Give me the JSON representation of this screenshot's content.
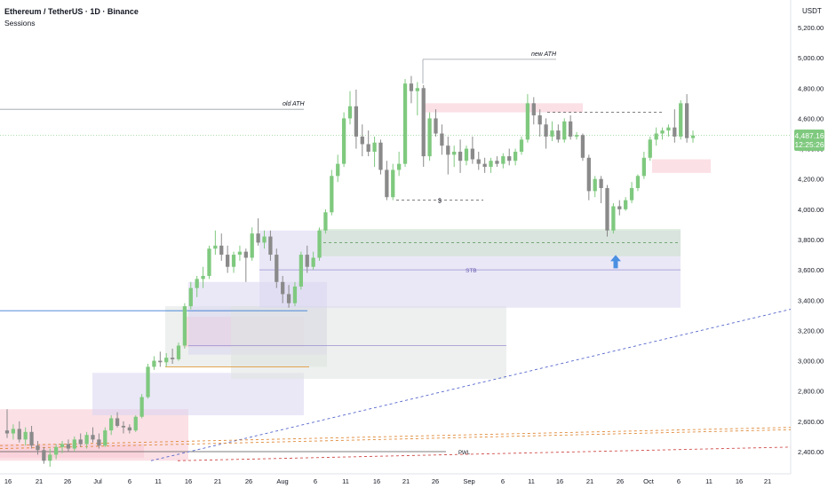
{
  "header": {
    "title": "Ethereum / TetherUS · 1D · Binance",
    "subtitle": "Sessions"
  },
  "price_axis": {
    "currency": "USDT",
    "ticks": [
      "5,200.00",
      "5,000.00",
      "4,800.00",
      "4,600.00",
      "4,400.00",
      "4,200.00",
      "4,000.00",
      "3,800.00",
      "3,600.00",
      "3,400.00",
      "3,200.00",
      "3,000.00",
      "2,800.00",
      "2,600.00",
      "2,400.00"
    ],
    "last_price": "4,487.16",
    "countdown": "12:25:26"
  },
  "annotations": {
    "old_ath": "old ATH",
    "new_ath": "new ATH",
    "dollar": "$",
    "stb": "STB",
    "pwl": "PWL"
  },
  "colors": {
    "up": "#7fc97f",
    "down": "#8a8a8a",
    "zone_pink": "#f7c6d2",
    "zone_purple": "#d9d6f0",
    "zone_green": "#c8e0c8",
    "zone_gray": "#dfe3e0",
    "arrow": "#4a90e2"
  },
  "chart_data": {
    "type": "candlestick",
    "symbol": "ETH/USDT",
    "interval": "1D",
    "ylim": [
      2340,
      5300
    ],
    "x_ticks": [
      "16",
      "21",
      "26",
      "Jul",
      "6",
      "11",
      "16",
      "21",
      "26",
      "Aug",
      "6",
      "11",
      "16",
      "21",
      "26",
      "Sep",
      "6",
      "11",
      "16",
      "21",
      "26",
      "Oct",
      "6",
      "11",
      "16",
      "21"
    ],
    "candles": [
      {
        "o": 2540,
        "h": 2680,
        "l": 2490,
        "c": 2520
      },
      {
        "o": 2520,
        "h": 2580,
        "l": 2480,
        "c": 2550
      },
      {
        "o": 2550,
        "h": 2600,
        "l": 2460,
        "c": 2480
      },
      {
        "o": 2480,
        "h": 2560,
        "l": 2440,
        "c": 2530
      },
      {
        "o": 2530,
        "h": 2570,
        "l": 2420,
        "c": 2440
      },
      {
        "o": 2440,
        "h": 2470,
        "l": 2380,
        "c": 2410
      },
      {
        "o": 2410,
        "h": 2430,
        "l": 2320,
        "c": 2340
      },
      {
        "o": 2340,
        "h": 2420,
        "l": 2300,
        "c": 2380
      },
      {
        "o": 2380,
        "h": 2450,
        "l": 2350,
        "c": 2430
      },
      {
        "o": 2430,
        "h": 2470,
        "l": 2390,
        "c": 2450
      },
      {
        "o": 2450,
        "h": 2480,
        "l": 2400,
        "c": 2420
      },
      {
        "o": 2420,
        "h": 2500,
        "l": 2400,
        "c": 2480
      },
      {
        "o": 2480,
        "h": 2520,
        "l": 2430,
        "c": 2450
      },
      {
        "o": 2450,
        "h": 2530,
        "l": 2420,
        "c": 2510
      },
      {
        "o": 2510,
        "h": 2560,
        "l": 2460,
        "c": 2480
      },
      {
        "o": 2480,
        "h": 2520,
        "l": 2420,
        "c": 2440
      },
      {
        "o": 2440,
        "h": 2560,
        "l": 2430,
        "c": 2540
      },
      {
        "o": 2540,
        "h": 2640,
        "l": 2510,
        "c": 2620
      },
      {
        "o": 2620,
        "h": 2660,
        "l": 2560,
        "c": 2570
      },
      {
        "o": 2570,
        "h": 2600,
        "l": 2520,
        "c": 2560
      },
      {
        "o": 2560,
        "h": 2580,
        "l": 2520,
        "c": 2540
      },
      {
        "o": 2540,
        "h": 2640,
        "l": 2530,
        "c": 2630
      },
      {
        "o": 2630,
        "h": 2780,
        "l": 2620,
        "c": 2760
      },
      {
        "o": 2760,
        "h": 2980,
        "l": 2750,
        "c": 2960
      },
      {
        "o": 2960,
        "h": 3030,
        "l": 2940,
        "c": 3000
      },
      {
        "o": 3000,
        "h": 3060,
        "l": 2960,
        "c": 2990
      },
      {
        "o": 2990,
        "h": 3050,
        "l": 2960,
        "c": 3020
      },
      {
        "o": 3020,
        "h": 3080,
        "l": 2980,
        "c": 3010
      },
      {
        "o": 3010,
        "h": 3120,
        "l": 3000,
        "c": 3100
      },
      {
        "o": 3100,
        "h": 3380,
        "l": 3080,
        "c": 3360
      },
      {
        "o": 3360,
        "h": 3520,
        "l": 3340,
        "c": 3480
      },
      {
        "o": 3480,
        "h": 3560,
        "l": 3420,
        "c": 3540
      },
      {
        "o": 3540,
        "h": 3620,
        "l": 3480,
        "c": 3560
      },
      {
        "o": 3560,
        "h": 3760,
        "l": 3540,
        "c": 3740
      },
      {
        "o": 3740,
        "h": 3860,
        "l": 3700,
        "c": 3760
      },
      {
        "o": 3760,
        "h": 3840,
        "l": 3660,
        "c": 3700
      },
      {
        "o": 3700,
        "h": 3760,
        "l": 3580,
        "c": 3620
      },
      {
        "o": 3620,
        "h": 3720,
        "l": 3580,
        "c": 3700
      },
      {
        "o": 3700,
        "h": 3760,
        "l": 3660,
        "c": 3720
      },
      {
        "o": 3720,
        "h": 3740,
        "l": 3520,
        "c": 3680
      },
      {
        "o": 3680,
        "h": 3880,
        "l": 3660,
        "c": 3840
      },
      {
        "o": 3840,
        "h": 3940,
        "l": 3760,
        "c": 3780
      },
      {
        "o": 3780,
        "h": 3860,
        "l": 3740,
        "c": 3820
      },
      {
        "o": 3820,
        "h": 3860,
        "l": 3660,
        "c": 3700
      },
      {
        "o": 3700,
        "h": 3740,
        "l": 3480,
        "c": 3520
      },
      {
        "o": 3520,
        "h": 3560,
        "l": 3380,
        "c": 3440
      },
      {
        "o": 3440,
        "h": 3500,
        "l": 3350,
        "c": 3380
      },
      {
        "o": 3380,
        "h": 3520,
        "l": 3360,
        "c": 3490
      },
      {
        "o": 3490,
        "h": 3720,
        "l": 3470,
        "c": 3700
      },
      {
        "o": 3700,
        "h": 3760,
        "l": 3580,
        "c": 3620
      },
      {
        "o": 3620,
        "h": 3720,
        "l": 3600,
        "c": 3680
      },
      {
        "o": 3680,
        "h": 3880,
        "l": 3660,
        "c": 3860
      },
      {
        "o": 3860,
        "h": 4000,
        "l": 3840,
        "c": 3980
      },
      {
        "o": 3980,
        "h": 4260,
        "l": 3960,
        "c": 4220
      },
      {
        "o": 4220,
        "h": 4360,
        "l": 4180,
        "c": 4300
      },
      {
        "o": 4300,
        "h": 4640,
        "l": 4280,
        "c": 4600
      },
      {
        "o": 4600,
        "h": 4780,
        "l": 4560,
        "c": 4680
      },
      {
        "o": 4680,
        "h": 4790,
        "l": 4400,
        "c": 4480
      },
      {
        "o": 4480,
        "h": 4560,
        "l": 4350,
        "c": 4430
      },
      {
        "o": 4430,
        "h": 4520,
        "l": 4350,
        "c": 4380
      },
      {
        "o": 4380,
        "h": 4480,
        "l": 4280,
        "c": 4440
      },
      {
        "o": 4440,
        "h": 4460,
        "l": 4230,
        "c": 4260
      },
      {
        "o": 4260,
        "h": 4320,
        "l": 4060,
        "c": 4080
      },
      {
        "o": 4080,
        "h": 4300,
        "l": 4060,
        "c": 4260
      },
      {
        "o": 4260,
        "h": 4380,
        "l": 4220,
        "c": 4300
      },
      {
        "o": 4300,
        "h": 4860,
        "l": 4280,
        "c": 4830
      },
      {
        "o": 4830,
        "h": 4880,
        "l": 4700,
        "c": 4780
      },
      {
        "o": 4780,
        "h": 4840,
        "l": 4620,
        "c": 4800
      },
      {
        "o": 4800,
        "h": 4820,
        "l": 4280,
        "c": 4350
      },
      {
        "o": 4350,
        "h": 4640,
        "l": 4320,
        "c": 4600
      },
      {
        "o": 4600,
        "h": 4660,
        "l": 4480,
        "c": 4500
      },
      {
        "o": 4500,
        "h": 4560,
        "l": 4360,
        "c": 4420
      },
      {
        "o": 4420,
        "h": 4480,
        "l": 4230,
        "c": 4360
      },
      {
        "o": 4360,
        "h": 4420,
        "l": 4280,
        "c": 4380
      },
      {
        "o": 4380,
        "h": 4460,
        "l": 4240,
        "c": 4320
      },
      {
        "o": 4320,
        "h": 4420,
        "l": 4290,
        "c": 4400
      },
      {
        "o": 4400,
        "h": 4480,
        "l": 4300,
        "c": 4330
      },
      {
        "o": 4330,
        "h": 4380,
        "l": 4260,
        "c": 4300
      },
      {
        "o": 4300,
        "h": 4340,
        "l": 4240,
        "c": 4280
      },
      {
        "o": 4280,
        "h": 4340,
        "l": 4240,
        "c": 4320
      },
      {
        "o": 4320,
        "h": 4350,
        "l": 4280,
        "c": 4300
      },
      {
        "o": 4300,
        "h": 4370,
        "l": 4270,
        "c": 4350
      },
      {
        "o": 4350,
        "h": 4400,
        "l": 4290,
        "c": 4320
      },
      {
        "o": 4320,
        "h": 4400,
        "l": 4290,
        "c": 4380
      },
      {
        "o": 4380,
        "h": 4480,
        "l": 4360,
        "c": 4460
      },
      {
        "o": 4460,
        "h": 4760,
        "l": 4440,
        "c": 4700
      },
      {
        "o": 4700,
        "h": 4740,
        "l": 4560,
        "c": 4620
      },
      {
        "o": 4620,
        "h": 4660,
        "l": 4480,
        "c": 4560
      },
      {
        "o": 4560,
        "h": 4600,
        "l": 4400,
        "c": 4480
      },
      {
        "o": 4480,
        "h": 4580,
        "l": 4450,
        "c": 4520
      },
      {
        "o": 4520,
        "h": 4560,
        "l": 4440,
        "c": 4460
      },
      {
        "o": 4460,
        "h": 4600,
        "l": 4440,
        "c": 4580
      },
      {
        "o": 4580,
        "h": 4620,
        "l": 4460,
        "c": 4480
      },
      {
        "o": 4480,
        "h": 4510,
        "l": 4460,
        "c": 4490
      },
      {
        "o": 4490,
        "h": 4500,
        "l": 4320,
        "c": 4340
      },
      {
        "o": 4340,
        "h": 4360,
        "l": 4060,
        "c": 4120
      },
      {
        "o": 4120,
        "h": 4220,
        "l": 4080,
        "c": 4200
      },
      {
        "o": 4200,
        "h": 4220,
        "l": 4040,
        "c": 4140
      },
      {
        "o": 4140,
        "h": 4160,
        "l": 3820,
        "c": 3860
      },
      {
        "o": 3860,
        "h": 4040,
        "l": 3840,
        "c": 4020
      },
      {
        "o": 4020,
        "h": 4060,
        "l": 3960,
        "c": 4000
      },
      {
        "o": 4000,
        "h": 4080,
        "l": 3990,
        "c": 4060
      },
      {
        "o": 4060,
        "h": 4180,
        "l": 4040,
        "c": 4140
      },
      {
        "o": 4140,
        "h": 4230,
        "l": 4120,
        "c": 4220
      },
      {
        "o": 4220,
        "h": 4380,
        "l": 4200,
        "c": 4340
      },
      {
        "o": 4340,
        "h": 4480,
        "l": 4320,
        "c": 4460
      },
      {
        "o": 4460,
        "h": 4540,
        "l": 4420,
        "c": 4500
      },
      {
        "o": 4500,
        "h": 4540,
        "l": 4460,
        "c": 4520
      },
      {
        "o": 4520,
        "h": 4560,
        "l": 4480,
        "c": 4540
      },
      {
        "o": 4540,
        "h": 4660,
        "l": 4440,
        "c": 4480
      },
      {
        "o": 4480,
        "h": 4720,
        "l": 4460,
        "c": 4700
      },
      {
        "o": 4700,
        "h": 4760,
        "l": 4440,
        "c": 4470
      },
      {
        "o": 4470,
        "h": 4520,
        "l": 4440,
        "c": 4487
      }
    ]
  }
}
